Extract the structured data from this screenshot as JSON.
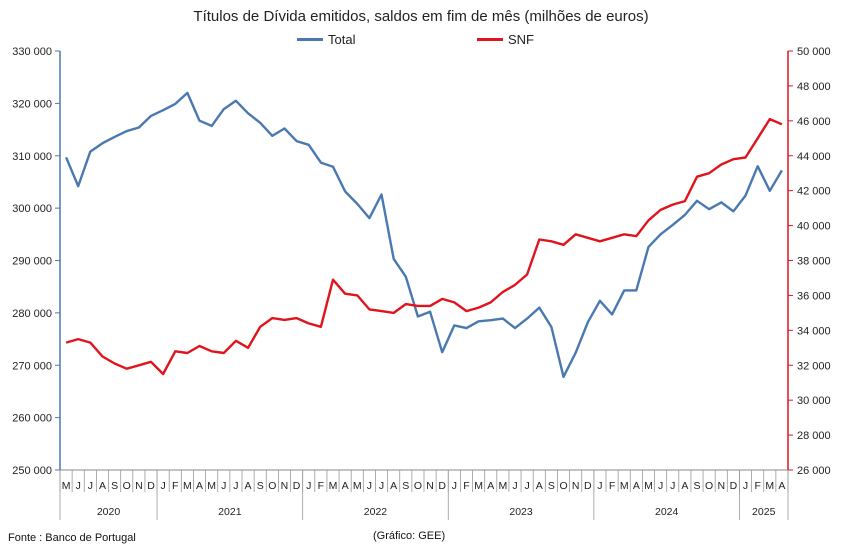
{
  "title": "Títulos de Dívida emitidos, saldos em fim de mês  (milhões de euros)",
  "source_note": "Fonte : Banco de Portugal",
  "credit_note": "(Gráfico: GEE)",
  "colors": {
    "total": "#4a78b0",
    "snf": "#e0141c",
    "axis_left": "#4a78b0",
    "axis_right": "#e0141c"
  },
  "chart_data": {
    "type": "line",
    "title": "Títulos de Dívida emitidos, saldos em fim de mês  (milhões de euros)",
    "legend_position": "top",
    "grid": false,
    "x_months": [
      "M",
      "J",
      "J",
      "A",
      "S",
      "O",
      "N",
      "D",
      "J",
      "F",
      "M",
      "A",
      "M",
      "J",
      "J",
      "A",
      "S",
      "O",
      "N",
      "D",
      "J",
      "F",
      "M",
      "A",
      "M",
      "J",
      "J",
      "A",
      "S",
      "O",
      "N",
      "D",
      "J",
      "F",
      "M",
      "A",
      "M",
      "J",
      "J",
      "A",
      "S",
      "O",
      "N",
      "D",
      "J",
      "F",
      "M",
      "A",
      "M",
      "J",
      "J",
      "A",
      "S",
      "O",
      "N",
      "D",
      "J",
      "F",
      "M",
      "A"
    ],
    "x_years": [
      {
        "label": "2020",
        "count": 8
      },
      {
        "label": "2021",
        "count": 12
      },
      {
        "label": "2022",
        "count": 12
      },
      {
        "label": "2023",
        "count": 12
      },
      {
        "label": "2024",
        "count": 12
      },
      {
        "label": "2025",
        "count": 4
      }
    ],
    "y_left": {
      "min": 250000,
      "max": 330000,
      "ticks": [
        250000,
        260000,
        270000,
        280000,
        290000,
        300000,
        310000,
        320000,
        330000
      ],
      "tick_labels": [
        "250 000",
        "260 000",
        "270 000",
        "280 000",
        "290 000",
        "300 000",
        "310 000",
        "320 000",
        "330 000"
      ]
    },
    "y_right": {
      "min": 26000,
      "max": 50000,
      "ticks": [
        26000,
        28000,
        30000,
        32000,
        34000,
        36000,
        38000,
        40000,
        42000,
        44000,
        46000,
        48000,
        50000
      ],
      "tick_labels": [
        "26 000",
        "28 000",
        "30 000",
        "32 000",
        "34 000",
        "36 000",
        "38 000",
        "40 000",
        "42 000",
        "44 000",
        "46 000",
        "48 000",
        "50 000"
      ]
    },
    "series": [
      {
        "name": "Total",
        "axis": "left",
        "values": [
          309700,
          304200,
          310800,
          312400,
          313600,
          314700,
          315400,
          317600,
          318700,
          319900,
          322000,
          316700,
          315700,
          318900,
          320500,
          318100,
          316300,
          313800,
          315200,
          312800,
          312100,
          308700,
          307900,
          303200,
          300800,
          298100,
          302600,
          290300,
          286900,
          279300,
          280200,
          272500,
          277600,
          277100,
          278400,
          278600,
          278900,
          277100,
          278900,
          281000,
          277300,
          267800,
          272400,
          278200,
          282300,
          279700,
          284300,
          284300,
          292600,
          295000,
          296800,
          298700,
          301400,
          299800,
          301100,
          299400,
          302400,
          308000,
          303300,
          307200
        ]
      },
      {
        "name": "SNF",
        "axis": "right",
        "values": [
          33300,
          33500,
          33300,
          32500,
          32100,
          31800,
          32000,
          32200,
          31500,
          32800,
          32700,
          33100,
          32800,
          32700,
          33400,
          33000,
          34200,
          34700,
          34600,
          34700,
          34400,
          34200,
          36900,
          36100,
          36000,
          35200,
          35100,
          35000,
          35500,
          35400,
          35400,
          35800,
          35600,
          35100,
          35300,
          35600,
          36200,
          36600,
          37200,
          39200,
          39100,
          38900,
          39500,
          39300,
          39100,
          39300,
          39500,
          39400,
          40300,
          40900,
          41200,
          41400,
          42800,
          43000,
          43500,
          43800,
          43900,
          45000,
          46100,
          45800
        ]
      }
    ]
  }
}
